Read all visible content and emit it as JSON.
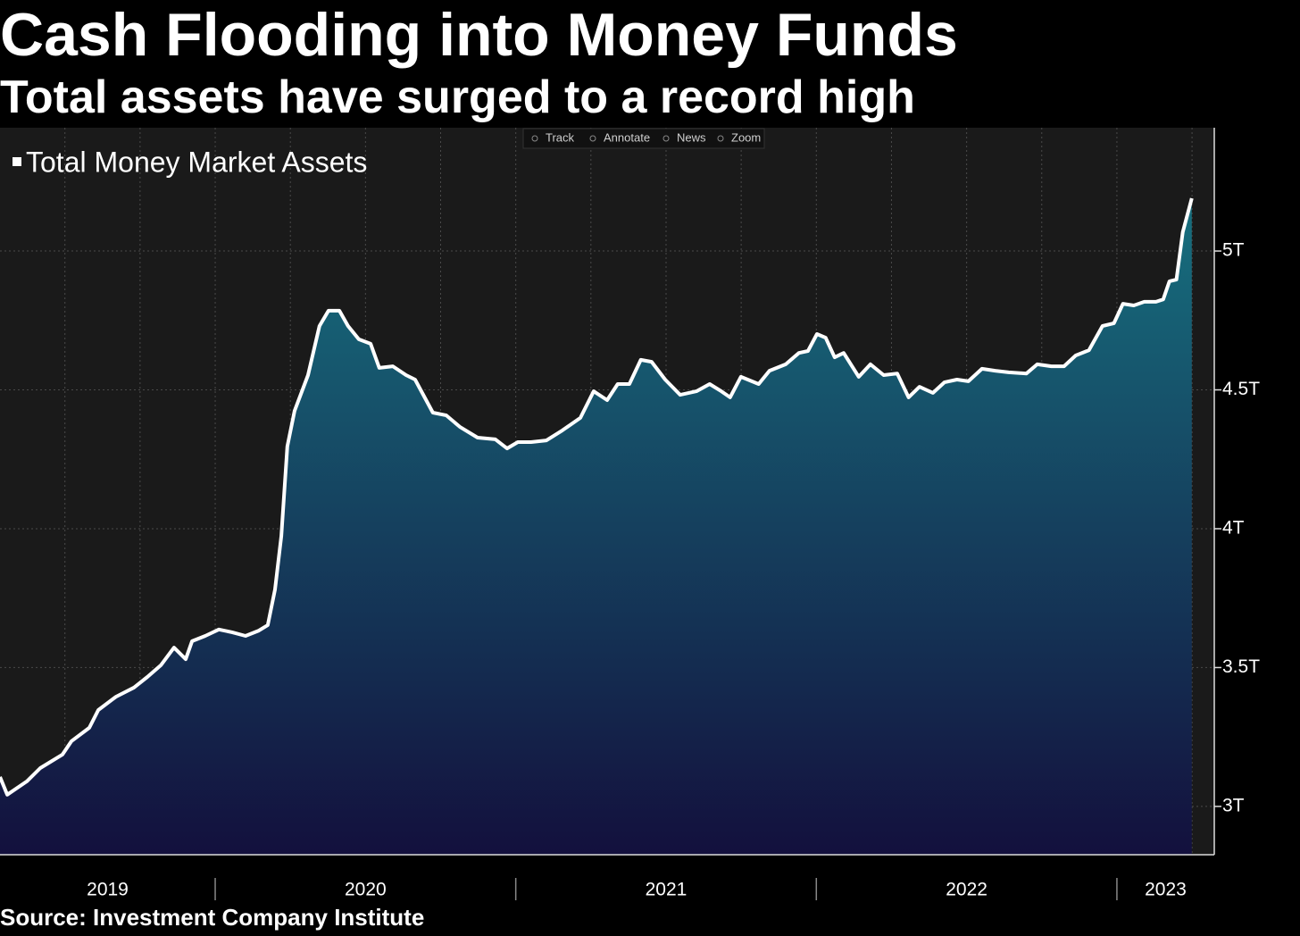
{
  "chart_data": {
    "type": "area",
    "title": "Cash Flooding into Money Funds",
    "subtitle": "Total assets have surged to a record high",
    "source": "Source: Investment Company Institute",
    "toolbar": [
      "Track",
      "Annotate",
      "News",
      "Zoom"
    ],
    "series": [
      {
        "name": "Total Money Market Assets",
        "color": "#ffffff",
        "x": [
          2019.284,
          2019.308,
          2019.373,
          2019.418,
          2019.492,
          2019.522,
          2019.581,
          2019.611,
          2019.67,
          2019.73,
          2019.774,
          2019.819,
          2019.863,
          2019.902,
          2019.923,
          2019.967,
          2020.012,
          2020.056,
          2020.101,
          2020.145,
          2020.175,
          2020.199,
          2020.22,
          2020.24,
          2020.264,
          2020.309,
          2020.347,
          2020.377,
          2020.413,
          2020.442,
          2020.478,
          2020.517,
          2020.546,
          2020.591,
          2020.635,
          2020.665,
          2020.724,
          2020.769,
          2020.814,
          2020.873,
          2020.932,
          2020.971,
          2021.007,
          2021.051,
          2021.102,
          2021.155,
          2021.215,
          2021.259,
          2021.304,
          2021.339,
          2021.378,
          2021.416,
          2021.452,
          2021.497,
          2021.547,
          2021.601,
          2021.645,
          2021.684,
          2021.713,
          2021.749,
          2021.808,
          2021.844,
          2021.898,
          2021.942,
          2021.972,
          2022.002,
          2022.031,
          2022.061,
          2022.091,
          2022.141,
          2022.18,
          2022.224,
          2022.269,
          2022.307,
          2022.343,
          2022.388,
          2022.426,
          2022.468,
          2022.506,
          2022.551,
          2022.595,
          2022.64,
          2022.699,
          2022.735,
          2022.782,
          2022.824,
          2022.863,
          2022.907,
          2022.952,
          2022.99,
          2023.02,
          2023.056,
          2023.091,
          2023.13,
          2023.154,
          2023.175,
          2023.198,
          2023.219,
          2023.249
        ],
        "values": [
          3.106,
          3.042,
          3.09,
          3.138,
          3.187,
          3.235,
          3.283,
          3.347,
          3.395,
          3.428,
          3.466,
          3.508,
          3.572,
          3.53,
          3.595,
          3.614,
          3.637,
          3.627,
          3.614,
          3.633,
          3.653,
          3.781,
          3.974,
          4.296,
          4.424,
          4.553,
          4.73,
          4.785,
          4.785,
          4.73,
          4.682,
          4.666,
          4.579,
          4.585,
          4.553,
          4.537,
          4.418,
          4.408,
          4.367,
          4.328,
          4.322,
          4.289,
          4.312,
          4.312,
          4.318,
          4.354,
          4.399,
          4.495,
          4.463,
          4.521,
          4.521,
          4.608,
          4.601,
          4.537,
          4.482,
          4.495,
          4.521,
          4.495,
          4.473,
          4.547,
          4.521,
          4.569,
          4.592,
          4.633,
          4.64,
          4.701,
          4.688,
          4.617,
          4.633,
          4.547,
          4.592,
          4.553,
          4.559,
          4.473,
          4.511,
          4.489,
          4.527,
          4.537,
          4.531,
          4.576,
          4.569,
          4.563,
          4.559,
          4.592,
          4.585,
          4.585,
          4.624,
          4.643,
          4.73,
          4.74,
          4.81,
          4.804,
          4.817,
          4.817,
          4.826,
          4.891,
          4.897,
          5.068,
          5.19
        ]
      }
    ],
    "xlim": [
      2019.284,
      2023.324
    ],
    "xticks": [
      2020,
      2021,
      2022,
      2023
    ],
    "x_labels": [
      "2019",
      "2020",
      "2021",
      "2022",
      "2023"
    ],
    "xgrid": [
      2019.5,
      2019.75,
      2020,
      2020.25,
      2020.5,
      2020.75,
      2021,
      2021.25,
      2021.5,
      2021.75,
      2022,
      2022.25,
      2022.5,
      2022.75,
      2023,
      2023.25
    ],
    "ylim": [
      2.826,
      5.444
    ],
    "yticks": [
      {
        "value": 3,
        "label": "3T"
      },
      {
        "value": 3.5,
        "label": "3.5T"
      },
      {
        "value": 4,
        "label": "4T"
      },
      {
        "value": 4.5,
        "label": "4.5T"
      },
      {
        "value": 5,
        "label": "5T"
      }
    ],
    "grid": true
  }
}
